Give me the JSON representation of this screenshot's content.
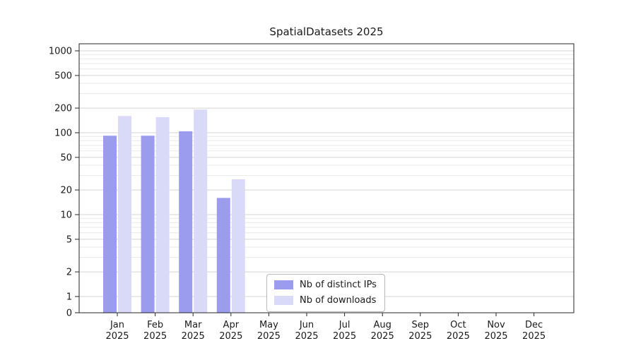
{
  "chart_data": {
    "type": "bar",
    "title": "SpatialDatasets 2025",
    "categories": [
      "Jan 2025",
      "Feb 2025",
      "Mar 2025",
      "Apr 2025",
      "May 2025",
      "Jun 2025",
      "Jul 2025",
      "Aug 2025",
      "Sep 2025",
      "Oct 2025",
      "Nov 2025",
      "Dec 2025"
    ],
    "series": [
      {
        "name": "Nb of distinct IPs",
        "color": "#9b9cee",
        "values": [
          92,
          92,
          104,
          16,
          0,
          0,
          0,
          0,
          0,
          0,
          0,
          0
        ]
      },
      {
        "name": "Nb of downloads",
        "color": "#d9daf8",
        "values": [
          160,
          155,
          192,
          27,
          0,
          0,
          0,
          0,
          0,
          0,
          0,
          0
        ]
      }
    ],
    "yticks": [
      0,
      1,
      2,
      5,
      10,
      20,
      50,
      100,
      200,
      500,
      1000
    ],
    "yscale": "symlog",
    "ylim": [
      0,
      1000
    ],
    "grid": true,
    "legend_position": "bottom-center",
    "colors": {
      "grid_major": "#d4d4d4",
      "grid_minor": "#e9e9e9",
      "axis": "#262626",
      "text": "#1a1a1a"
    }
  }
}
